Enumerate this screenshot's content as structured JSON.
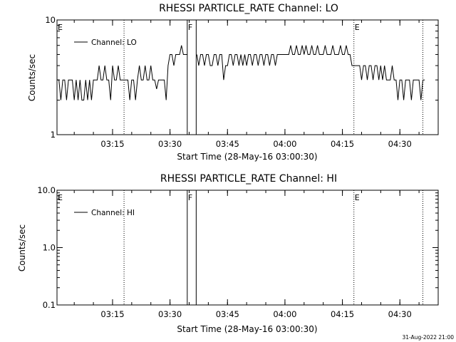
{
  "footer": {
    "timestamp": "31-Aug-2022 21:00"
  },
  "chart_data": [
    {
      "type": "line",
      "title": "RHESSI PARTICLE_RATE Channel: LO",
      "xlabel": "Start Time (28-May-16 03:00:30)",
      "ylabel": "Counts/sec",
      "yscale": "log",
      "ylim": [
        1,
        10
      ],
      "yticks": [
        1,
        10
      ],
      "ytick_labels": [
        "1",
        "10"
      ],
      "xlim": [
        "03:00:30",
        "04:40:00"
      ],
      "xticks": [
        "03:15",
        "03:30",
        "03:45",
        "04:00",
        "04:15",
        "04:30"
      ],
      "legend": {
        "position": "top-left",
        "entries": [
          "Channel: LO"
        ]
      },
      "markers": [
        {
          "label": "E",
          "time": "03:00:30",
          "style": "none"
        },
        {
          "label": "",
          "time": "03:18:00",
          "style": "dotted"
        },
        {
          "label": "F",
          "time": "03:34:30",
          "style": "solid"
        },
        {
          "label": "",
          "time": "03:36:50",
          "style": "solid"
        },
        {
          "label": "E",
          "time": "04:18:00",
          "style": "dotted"
        },
        {
          "label": "",
          "time": "04:36:00",
          "style": "dotted"
        }
      ],
      "series": [
        {
          "name": "Channel: LO",
          "segments": [
            {
              "x": [
                "03:00:30",
                "03:01:00",
                "03:01:30",
                "03:02:00",
                "03:02:30",
                "03:03:00",
                "03:03:30",
                "03:04:00",
                "03:04:30",
                "03:05:00",
                "03:05:30",
                "03:06:00",
                "03:06:30",
                "03:07:00",
                "03:07:30",
                "03:08:00",
                "03:08:30",
                "03:09:00",
                "03:09:30",
                "03:10:00",
                "03:10:30",
                "03:11:00",
                "03:11:30",
                "03:12:00",
                "03:12:30",
                "03:13:00",
                "03:13:30",
                "03:14:00",
                "03:14:30",
                "03:15:00",
                "03:15:30",
                "03:16:00",
                "03:16:30",
                "03:17:00",
                "03:17:30",
                "03:18:00",
                "03:18:30",
                "03:19:00",
                "03:19:30",
                "03:20:00",
                "03:20:30",
                "03:21:00",
                "03:21:30",
                "03:22:00",
                "03:22:30",
                "03:23:00",
                "03:23:30",
                "03:24:00",
                "03:24:30",
                "03:25:00",
                "03:25:30",
                "03:26:00",
                "03:26:30",
                "03:27:00",
                "03:27:30",
                "03:28:00",
                "03:28:30",
                "03:29:00",
                "03:29:30",
                "03:30:00",
                "03:30:30",
                "03:31:00",
                "03:31:30",
                "03:32:00",
                "03:32:30",
                "03:33:00",
                "03:33:30",
                "03:34:00",
                "03:34:30"
              ],
              "y": [
                3,
                3,
                2,
                3,
                3,
                2,
                3,
                3,
                3,
                2,
                3,
                2,
                3,
                2,
                2,
                3,
                2,
                3,
                2,
                3,
                3,
                3,
                4,
                3,
                3,
                4,
                3,
                3,
                2,
                4,
                3,
                3,
                4,
                3,
                3,
                3,
                3,
                3,
                2,
                3,
                3,
                2,
                3,
                4,
                3,
                3,
                4,
                3,
                3,
                4,
                3,
                3,
                2.5,
                3,
                3,
                3,
                3,
                2,
                4,
                5,
                5,
                4,
                5,
                5,
                5,
                6,
                5,
                5,
                5
              ]
            },
            {
              "x": [
                "03:37:00",
                "03:37:30",
                "03:38:00",
                "03:38:30",
                "03:39:00",
                "03:39:30",
                "03:40:00",
                "03:40:30",
                "03:41:00",
                "03:41:30",
                "03:42:00",
                "03:42:30",
                "03:43:00",
                "03:43:30",
                "03:44:00",
                "03:44:30",
                "03:45:00",
                "03:45:30",
                "03:46:00",
                "03:46:30",
                "03:47:00",
                "03:47:30",
                "03:48:00",
                "03:48:30",
                "03:49:00",
                "03:49:30",
                "03:50:00",
                "03:50:30",
                "03:51:00",
                "03:51:30",
                "03:52:00",
                "03:52:30",
                "03:53:00",
                "03:53:30",
                "03:54:00",
                "03:54:30",
                "03:55:00",
                "03:55:30",
                "03:56:00",
                "03:56:30",
                "03:57:00",
                "03:57:30",
                "03:58:00",
                "03:58:30",
                "03:59:00",
                "03:59:30",
                "04:00:00",
                "04:00:30",
                "04:01:00",
                "04:01:30",
                "04:02:00",
                "04:02:30",
                "04:03:00",
                "04:03:30",
                "04:04:00",
                "04:04:30",
                "04:05:00",
                "04:05:30",
                "04:06:00",
                "04:06:30",
                "04:07:00",
                "04:07:30",
                "04:08:00",
                "04:08:30",
                "04:09:00",
                "04:09:30",
                "04:10:00",
                "04:10:30",
                "04:11:00",
                "04:11:30",
                "04:12:00",
                "04:12:30",
                "04:13:00",
                "04:13:30",
                "04:14:00",
                "04:14:30",
                "04:15:00",
                "04:15:30",
                "04:16:00",
                "04:16:30",
                "04:17:00",
                "04:17:30",
                "04:18:00",
                "04:18:30",
                "04:19:00",
                "04:19:30",
                "04:20:00",
                "04:20:30",
                "04:21:00",
                "04:21:30",
                "04:22:00",
                "04:22:30",
                "04:23:00",
                "04:23:30",
                "04:24:00",
                "04:24:30",
                "04:25:00",
                "04:25:30",
                "04:26:00",
                "04:26:30",
                "04:27:00",
                "04:27:30",
                "04:28:00",
                "04:28:30",
                "04:29:00",
                "04:29:30",
                "04:30:00",
                "04:30:30",
                "04:31:00",
                "04:31:30",
                "04:32:00",
                "04:32:30",
                "04:33:00",
                "04:33:30",
                "04:34:00",
                "04:34:30",
                "04:35:00",
                "04:35:30",
                "04:36:00",
                "04:36:30"
              ],
              "y": [
                5,
                4,
                5,
                5,
                4,
                5,
                5,
                4,
                4,
                5,
                5,
                4,
                5,
                5,
                3,
                4,
                4,
                5,
                5,
                4,
                5,
                5,
                4,
                5,
                4,
                5,
                4,
                5,
                5,
                4,
                5,
                5,
                4,
                5,
                5,
                4,
                5,
                5,
                4,
                5,
                5,
                4,
                5,
                5,
                5,
                5,
                5,
                5,
                5,
                6,
                5,
                5,
                6,
                5,
                5,
                6,
                5,
                6,
                5,
                5,
                6,
                5,
                5,
                6,
                5,
                5,
                5,
                6,
                5,
                5,
                5,
                6,
                5,
                5,
                5,
                6,
                5,
                5,
                6,
                5,
                5,
                4,
                4,
                4,
                4,
                4,
                3,
                4,
                4,
                3,
                4,
                4,
                3,
                4,
                4,
                3,
                4,
                3,
                4,
                3,
                3,
                3,
                4,
                3,
                3,
                2,
                3,
                3,
                2,
                3,
                3,
                3,
                2,
                3,
                3,
                3,
                3,
                2,
                3,
                3
              ]
            }
          ]
        }
      ]
    },
    {
      "type": "line",
      "title": "RHESSI PARTICLE_RATE Channel: HI",
      "xlabel": "Start Time (28-May-16 03:00:30)",
      "ylabel": "Counts/sec",
      "yscale": "log",
      "ylim": [
        0.1,
        10
      ],
      "yticks": [
        0.1,
        1,
        10
      ],
      "ytick_labels": [
        "0.1",
        "1.0",
        "10.0"
      ],
      "xlim": [
        "03:00:30",
        "04:40:00"
      ],
      "xticks": [
        "03:15",
        "03:30",
        "03:45",
        "04:00",
        "04:15",
        "04:30"
      ],
      "legend": {
        "position": "top-left",
        "entries": [
          "Channel: HI"
        ]
      },
      "markers": [
        {
          "label": "E",
          "time": "03:00:30",
          "style": "none"
        },
        {
          "label": "",
          "time": "03:18:00",
          "style": "dotted"
        },
        {
          "label": "F",
          "time": "03:34:30",
          "style": "solid"
        },
        {
          "label": "",
          "time": "03:36:50",
          "style": "solid"
        },
        {
          "label": "E",
          "time": "04:18:00",
          "style": "dotted"
        },
        {
          "label": "",
          "time": "04:36:00",
          "style": "dotted"
        }
      ],
      "series": [
        {
          "name": "Channel: HI",
          "segments": []
        }
      ]
    }
  ]
}
